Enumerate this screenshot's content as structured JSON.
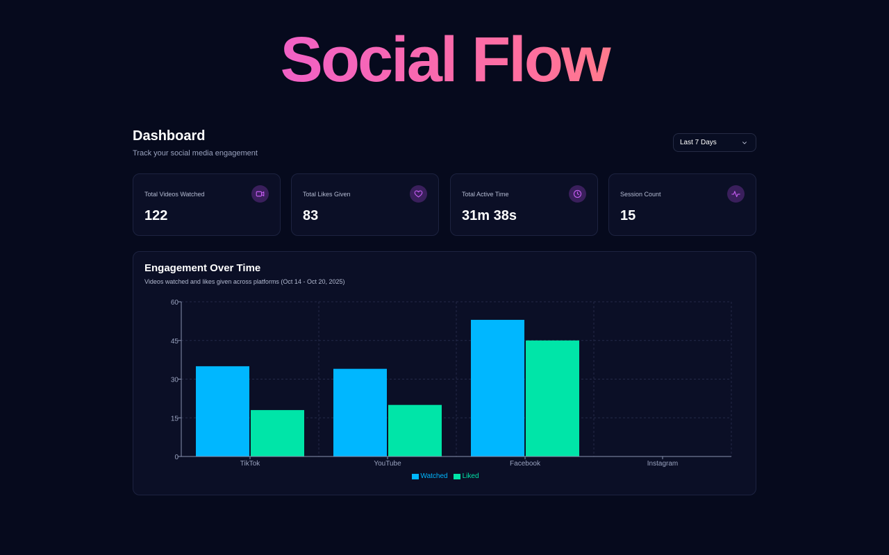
{
  "brand": {
    "title": "Social Flow"
  },
  "header": {
    "title": "Dashboard",
    "subtitle": "Track your social media engagement",
    "range": {
      "selected": "Last 7 Days",
      "icon": "chevron-down-icon"
    }
  },
  "stats": [
    {
      "label": "Total Videos Watched",
      "value": "122",
      "icon": "video-icon"
    },
    {
      "label": "Total Likes Given",
      "value": "83",
      "icon": "heart-icon"
    },
    {
      "label": "Total Active Time",
      "value": "31m 38s",
      "icon": "clock-icon"
    },
    {
      "label": "Session Count",
      "value": "15",
      "icon": "activity-icon"
    }
  ],
  "colors": {
    "background": "#060a1d",
    "card": "#0b0f26",
    "accent_icon": "#c45cf0",
    "watched": "#00b7ff",
    "liked": "#00e5a8"
  },
  "chart": {
    "title": "Engagement Over Time",
    "subtitle": "Videos watched and likes given across platforms (Oct 14 - Oct 20, 2025)"
  },
  "chart_data": {
    "type": "bar",
    "categories": [
      "TikTok",
      "YouTube",
      "Facebook",
      "Instagram"
    ],
    "series": [
      {
        "name": "Watched",
        "values": [
          35,
          34,
          53,
          0
        ]
      },
      {
        "name": "Liked",
        "values": [
          18,
          20,
          45,
          0
        ]
      }
    ],
    "ylim": [
      0,
      60
    ],
    "yticks": [
      0,
      15,
      30,
      45,
      60
    ],
    "grid": true,
    "legend": "bottom-center",
    "xlabel": "",
    "ylabel": ""
  }
}
